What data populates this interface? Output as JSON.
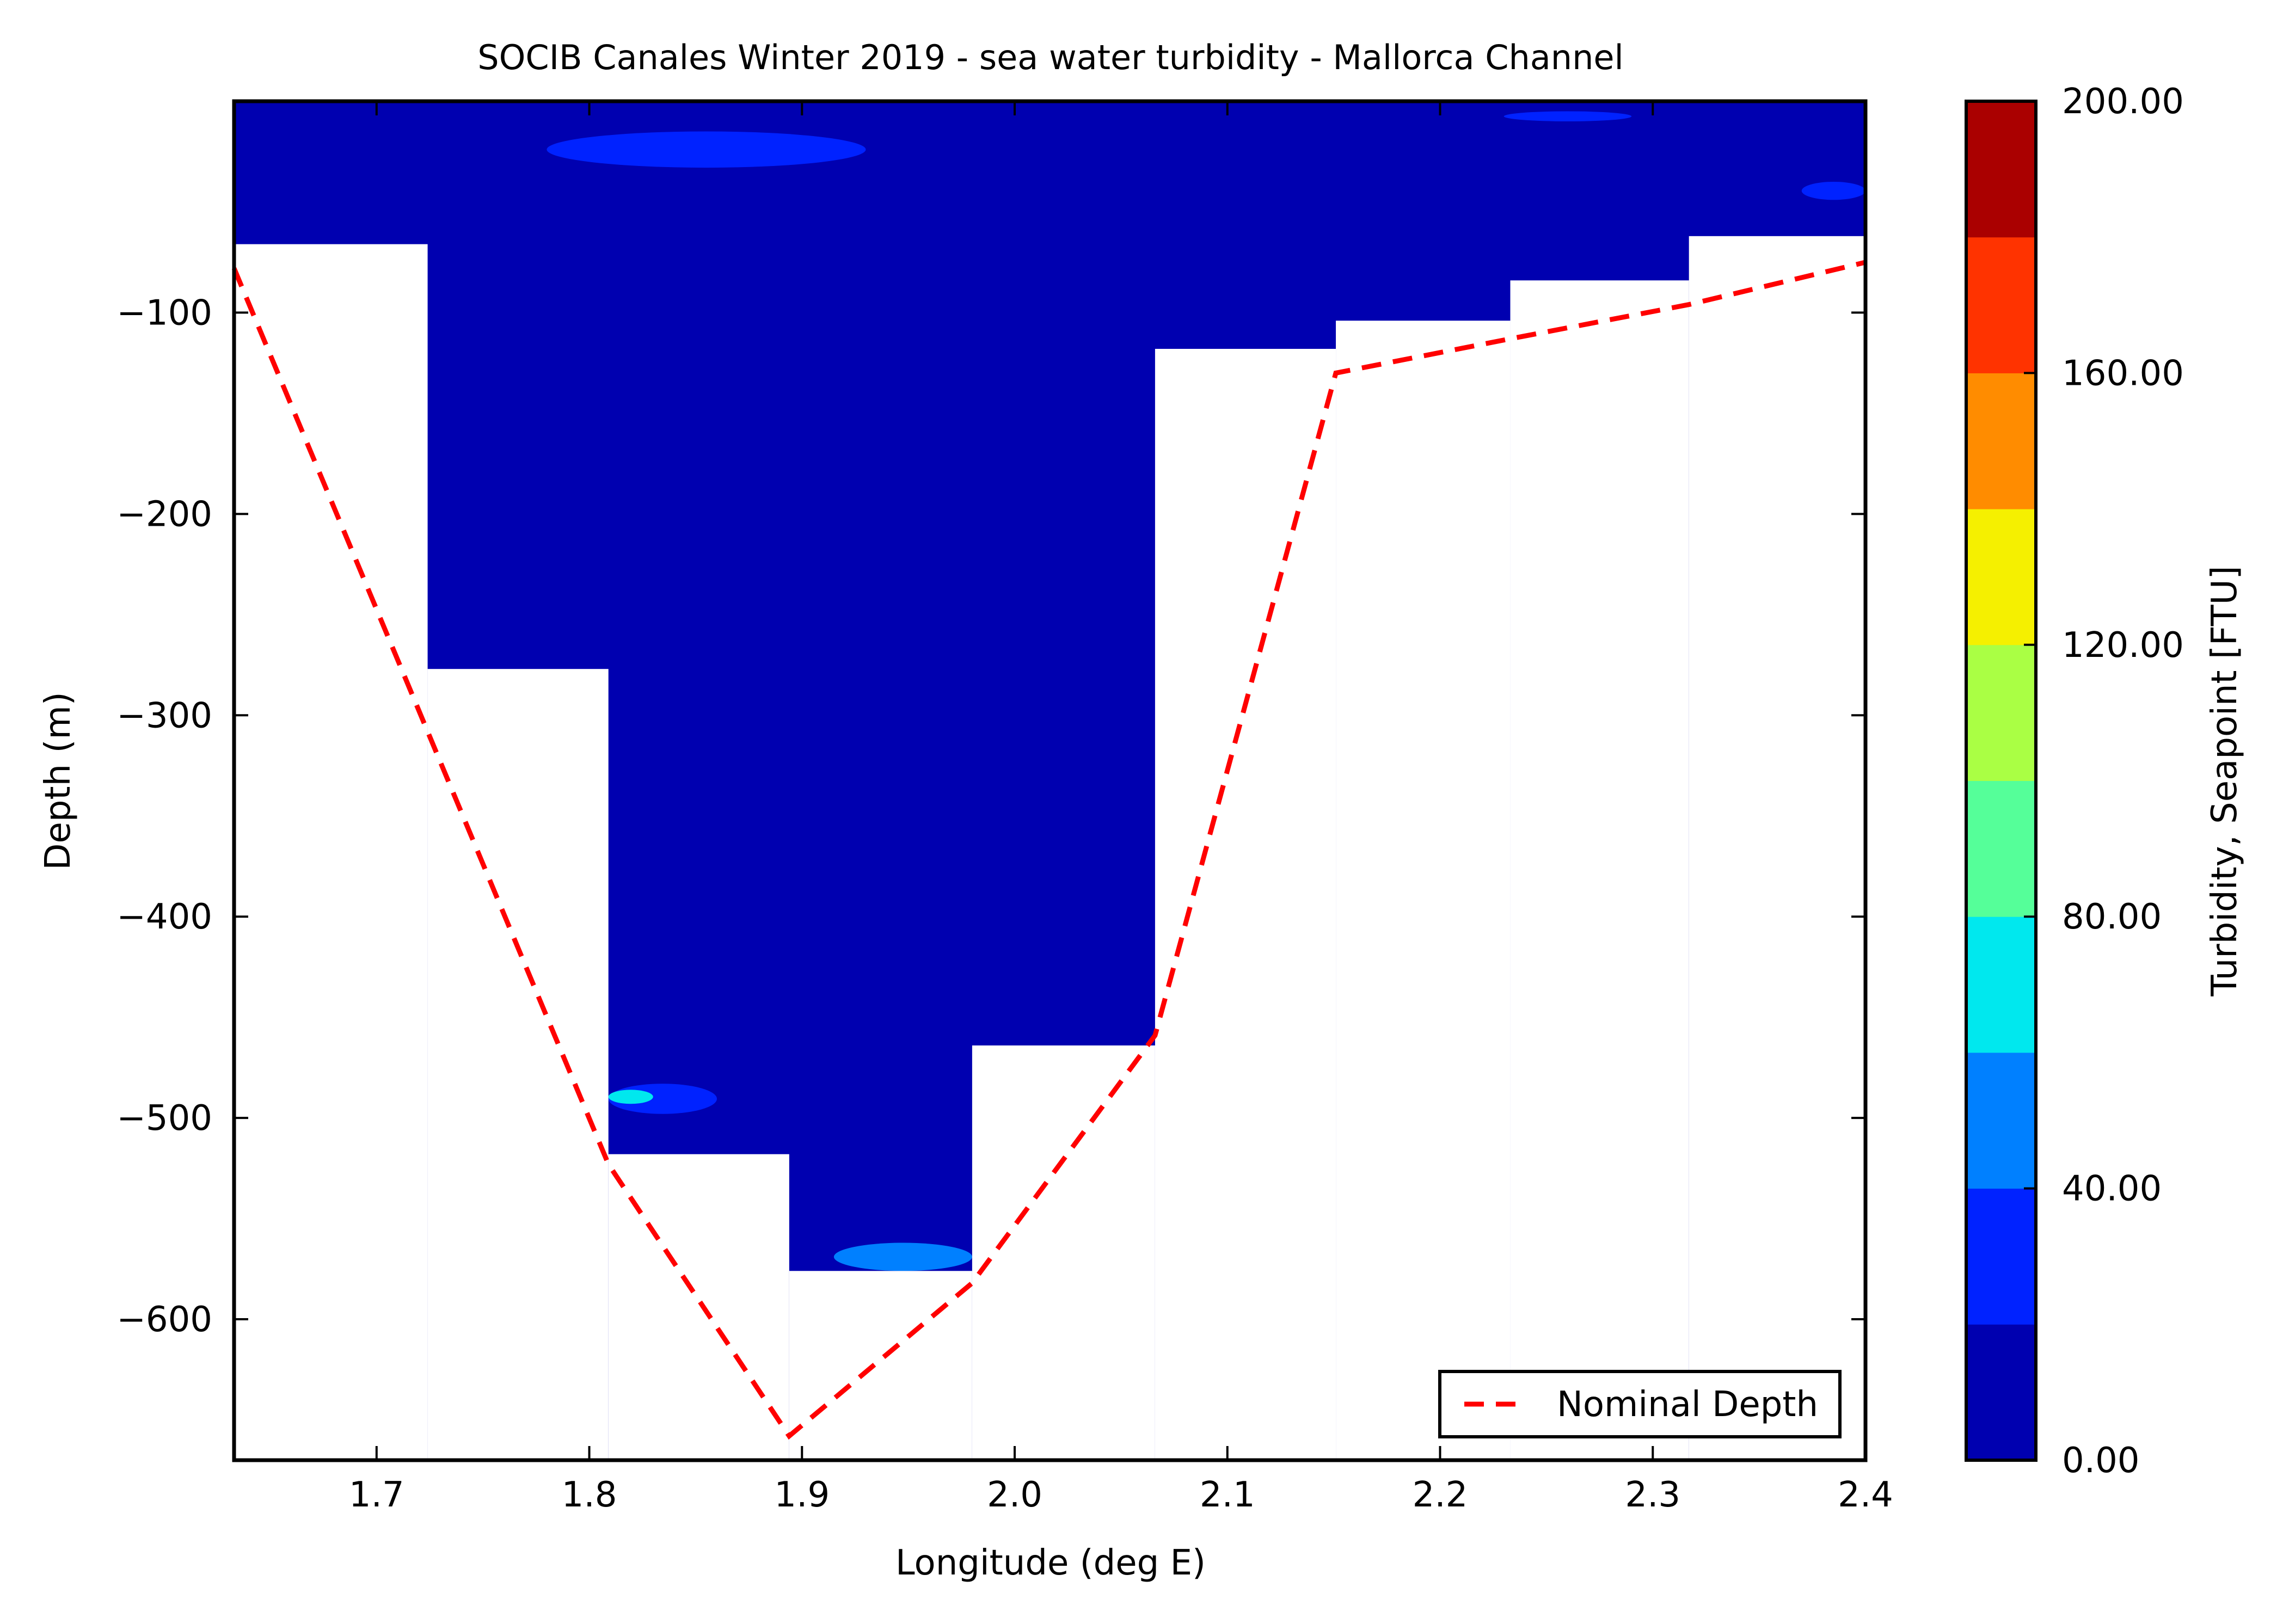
{
  "chart_data": {
    "type": "contour",
    "title": "SOCIB Canales Winter 2019 - sea water turbidity  -  Mallorca Channel",
    "xlabel": "Longitude (deg E)",
    "ylabel": "Depth (m)",
    "xlim": [
      1.633,
      2.4
    ],
    "ylim": [
      -670,
      5
    ],
    "x_ticks": [
      1.7,
      1.8,
      1.9,
      2.0,
      2.1,
      2.2,
      2.3,
      2.4
    ],
    "x_tick_labels": [
      "1.7",
      "1.8",
      "1.9",
      "2.0",
      "2.1",
      "2.2",
      "2.3",
      "2.4"
    ],
    "y_ticks": [
      -100,
      -200,
      -300,
      -400,
      -500,
      -600
    ],
    "y_tick_labels": [
      "−100",
      "−200",
      "−300",
      "−400",
      "−500",
      "−600"
    ],
    "grid": false,
    "colorbar": {
      "label": "Turbidity, Seapoint [FTU]",
      "range": [
        0,
        200
      ],
      "tick_values": [
        0,
        40,
        80,
        120,
        160,
        200
      ],
      "tick_labels": [
        "0.00",
        "40.00",
        "80.00",
        "120.00",
        "160.00",
        "200.00"
      ],
      "levels": [
        0,
        20,
        40,
        60,
        80,
        100,
        120,
        140,
        160,
        180,
        200
      ],
      "level_colors": [
        "#0000b0",
        "#0022ff",
        "#0080ff",
        "#00e8ee",
        "#55ff99",
        "#aaff44",
        "#f5f000",
        "#ff8c00",
        "#ff3300",
        "#aa0000"
      ]
    },
    "profile_bins": [
      {
        "x0": 1.633,
        "x1": 1.724,
        "bottom": -66
      },
      {
        "x0": 1.724,
        "x1": 1.809,
        "bottom": -277
      },
      {
        "x0": 1.809,
        "x1": 1.894,
        "bottom": -518
      },
      {
        "x0": 1.894,
        "x1": 1.98,
        "bottom": -576
      },
      {
        "x0": 1.98,
        "x1": 2.066,
        "bottom": -464
      },
      {
        "x0": 2.066,
        "x1": 2.151,
        "bottom": -118
      },
      {
        "x0": 2.151,
        "x1": 2.233,
        "bottom": -104
      },
      {
        "x0": 2.233,
        "x1": 2.317,
        "bottom": -84
      },
      {
        "x0": 2.317,
        "x1": 2.4,
        "bottom": -62
      }
    ],
    "patches": [
      {
        "x0": 1.78,
        "x1": 1.93,
        "y0": -10,
        "y1": -28,
        "level": 1
      },
      {
        "x0": 2.23,
        "x1": 2.29,
        "y0": 0,
        "y1": -5,
        "level": 1
      },
      {
        "x0": 2.37,
        "x1": 2.4,
        "y0": -35,
        "y1": -44,
        "level": 1
      },
      {
        "x0": 1.809,
        "x1": 1.86,
        "y0": -483,
        "y1": -498,
        "level": 1
      },
      {
        "x0": 1.809,
        "x1": 1.83,
        "y0": -486,
        "y1": -493,
        "level": 3
      },
      {
        "x0": 1.915,
        "x1": 1.98,
        "y0": -562,
        "y1": -576,
        "level": 2
      }
    ],
    "series": [
      {
        "name": "Nominal Depth",
        "style": "dashed",
        "color": "#ff0000",
        "x": [
          1.633,
          1.809,
          1.894,
          1.98,
          2.066,
          2.151,
          2.233,
          2.317,
          2.4
        ],
        "y": [
          -78,
          -523,
          -658,
          -582,
          -459,
          -130,
          -113,
          -96,
          -75
        ]
      }
    ],
    "legend_position": "lower-right"
  }
}
